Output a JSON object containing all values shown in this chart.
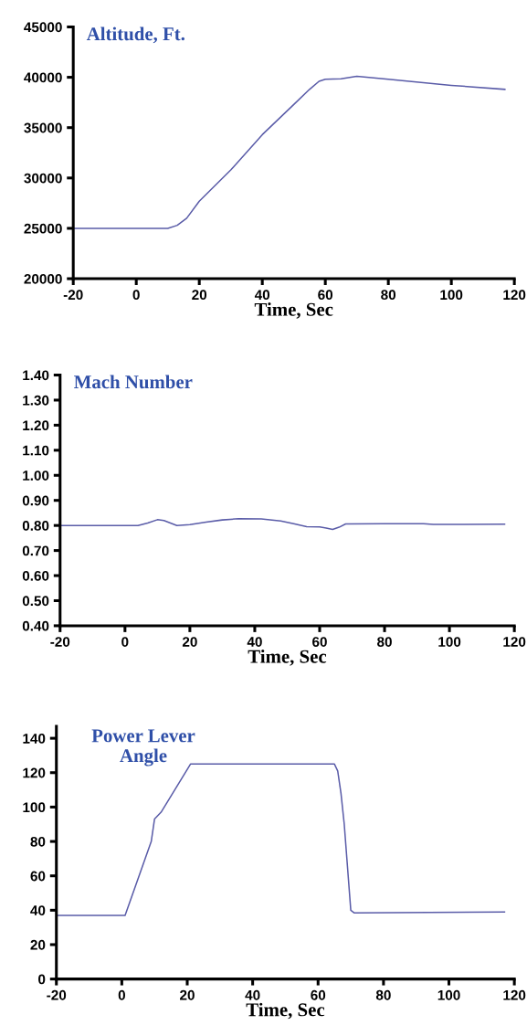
{
  "chart_data": [
    {
      "type": "line",
      "title": "Altitude, Ft.",
      "xlabel": "Time, Sec",
      "xlim": [
        -20,
        120
      ],
      "xticks": [
        -20,
        0,
        20,
        40,
        60,
        80,
        100,
        120
      ],
      "ylim": [
        20000,
        45000
      ],
      "yticks": [
        20000,
        25000,
        30000,
        35000,
        40000,
        45000
      ],
      "grid": false,
      "legend": false,
      "series": [
        {
          "color": "#5a5ca8",
          "x": [
            -20,
            10,
            13,
            16,
            20,
            30,
            40,
            50,
            55,
            58,
            60,
            65,
            70,
            80,
            100,
            117
          ],
          "values": [
            25000,
            25000,
            25300,
            26000,
            27700,
            30800,
            34300,
            37300,
            38800,
            39600,
            39800,
            39850,
            40100,
            39800,
            39200,
            38800
          ]
        }
      ]
    },
    {
      "type": "line",
      "title": "Mach Number",
      "xlabel": "Time, Sec",
      "xlim": [
        -20,
        120
      ],
      "xticks": [
        -20,
        0,
        20,
        40,
        60,
        80,
        100,
        120
      ],
      "ylim": [
        0.4,
        1.4
      ],
      "yticks": [
        {
          "value": 0.4,
          "label": "0.40"
        },
        {
          "value": 0.5,
          "label": "0.50"
        },
        {
          "value": 0.6,
          "label": "0.60"
        },
        {
          "value": 0.7,
          "label": "0.70"
        },
        {
          "value": 0.8,
          "label": "0.80"
        },
        {
          "value": 0.9,
          "label": "0.90"
        },
        {
          "value": 1.0,
          "label": "1.00"
        },
        {
          "value": 1.1,
          "label": "1.10"
        },
        {
          "value": 1.2,
          "label": "1.20"
        },
        {
          "value": 1.3,
          "label": "1.30"
        },
        {
          "value": 1.4,
          "label": "1.40"
        }
      ],
      "grid": false,
      "legend": false,
      "series": [
        {
          "color": "#5a5ca8",
          "x": [
            -20,
            4,
            7,
            10,
            12,
            16,
            20,
            25,
            30,
            35,
            42,
            48,
            52,
            56,
            60,
            62,
            64,
            66,
            68,
            80,
            92,
            95,
            117
          ],
          "values": [
            0.8,
            0.8,
            0.81,
            0.823,
            0.82,
            0.8,
            0.803,
            0.813,
            0.822,
            0.827,
            0.826,
            0.818,
            0.807,
            0.795,
            0.794,
            0.79,
            0.784,
            0.793,
            0.806,
            0.807,
            0.807,
            0.804,
            0.805
          ]
        }
      ]
    },
    {
      "type": "line",
      "title": "Power Lever Angle",
      "xlabel": "Time, Sec",
      "xlim": [
        -20,
        120
      ],
      "xticks": [
        -20,
        0,
        20,
        40,
        60,
        80,
        100,
        120
      ],
      "ylim": [
        0,
        147
      ],
      "yticks": [
        0,
        20,
        40,
        60,
        80,
        100,
        120,
        140
      ],
      "grid": false,
      "legend": false,
      "series": [
        {
          "color": "#5a5ca8",
          "x": [
            -20,
            1,
            9,
            10,
            12,
            21,
            65,
            66,
            67,
            68,
            70,
            71,
            117
          ],
          "values": [
            37,
            37,
            80,
            93,
            97,
            125,
            125,
            121,
            108,
            90,
            40,
            38.5,
            39
          ]
        }
      ]
    }
  ]
}
